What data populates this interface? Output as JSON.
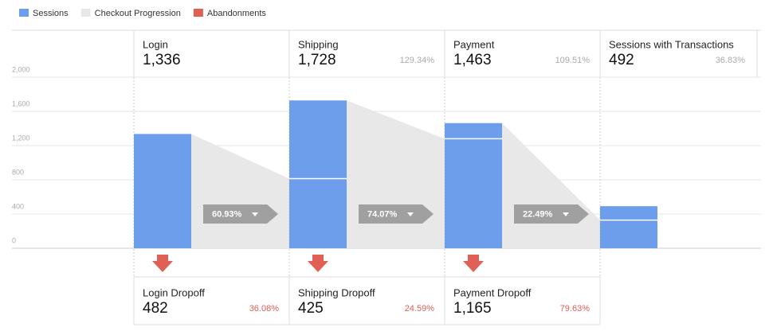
{
  "chart_data": {
    "type": "funnel",
    "legend": [
      {
        "name": "Sessions",
        "color": "#6d9eeb"
      },
      {
        "name": "Checkout Progression",
        "color": "#e8e8e8"
      },
      {
        "name": "Abandonments",
        "color": "#e06055"
      }
    ],
    "ylim": [
      0,
      2000
    ],
    "yticks": [
      0,
      400,
      800,
      {
        "value": 1200,
        "label": "1,200"
      },
      {
        "value": 1600,
        "label": "1,600"
      },
      {
        "value": 2000,
        "label": "2,000"
      }
    ],
    "grid": true,
    "categories": [
      "Login",
      "Shipping",
      "Payment",
      "Sessions with Transactions"
    ],
    "values": [
      1336,
      1728,
      1463,
      492
    ],
    "value_labels": [
      "1,336",
      "1,728",
      "1,463",
      "492"
    ],
    "percents": [
      null,
      129.34,
      109.51,
      36.83
    ],
    "percent_labels": [
      null,
      "129.34%",
      "109.51%",
      "36.83%"
    ],
    "progression": [
      60.93,
      74.07,
      22.49
    ],
    "progression_labels": [
      "60.93%",
      "74.07%",
      "22.49%"
    ],
    "progression_values": [
      814,
      1280,
      329
    ],
    "dropoffs": {
      "names": [
        "Login Dropoff",
        "Shipping Dropoff",
        "Payment Dropoff"
      ],
      "values": [
        482,
        425,
        1165
      ],
      "value_labels": [
        "482",
        "425",
        "1,165"
      ],
      "percents": [
        36.08,
        24.59,
        79.63
      ],
      "percent_labels": [
        "36.08%",
        "24.59%",
        "79.63%"
      ]
    }
  }
}
